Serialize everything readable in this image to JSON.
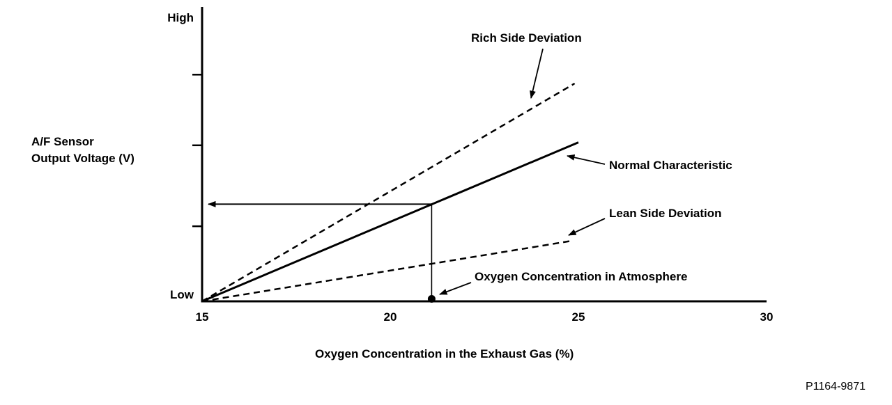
{
  "figure_code": "P1164-9871",
  "chart_data": {
    "type": "line",
    "title": "",
    "xlabel": "Oxygen Concentration in the Exhaust Gas (%)",
    "ylabel": "A/F Sensor\nOutput Voltage (V)",
    "xlim": [
      15,
      30
    ],
    "ylim": [
      0,
      1
    ],
    "grid": false,
    "legend_position": "none",
    "y_axis_qualitative": {
      "high": "High",
      "low": "Low"
    },
    "x_ticks": [
      15,
      20,
      25,
      30
    ],
    "y_tick_positions": [
      0.255,
      0.53,
      0.77
    ],
    "series": [
      {
        "name": "Rich Side Deviation",
        "style": "dashed",
        "points": [
          [
            15,
            0
          ],
          [
            24.9,
            0.74
          ]
        ]
      },
      {
        "name": "Normal Characteristic",
        "style": "solid",
        "points": [
          [
            15,
            0
          ],
          [
            25.0,
            0.54
          ]
        ]
      },
      {
        "name": "Lean Side Deviation",
        "style": "dashed",
        "points": [
          [
            15,
            0
          ],
          [
            24.8,
            0.205
          ]
        ]
      }
    ],
    "annotations": {
      "atmosphere_label": "Oxygen Concentration in Atmosphere",
      "atmosphere_x": 21.1,
      "indicated_output_v": 0.33
    },
    "colors": {
      "ink": "#000000",
      "background": "#ffffff"
    }
  }
}
